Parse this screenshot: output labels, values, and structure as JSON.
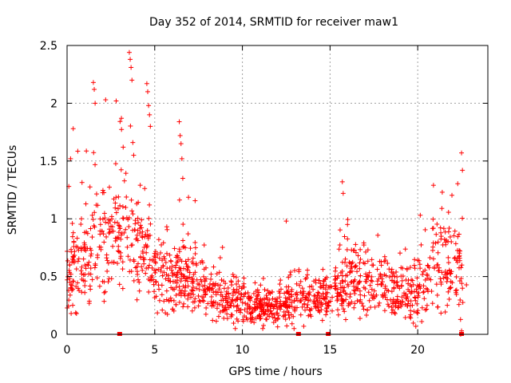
{
  "chart_data": {
    "type": "scatter",
    "title": "Day 352 of 2014, SRMTID for receiver maw1",
    "xlabel": "GPS time / hours",
    "ylabel": "SRMTID / TECUs",
    "xlim": [
      0,
      24
    ],
    "ylim": [
      0,
      2.5
    ],
    "grid": true,
    "marker": "plus",
    "color": "#ff0000",
    "x_ticks": [
      0,
      5,
      10,
      15,
      20
    ],
    "x_tick_labels": [
      "0",
      "5",
      "10",
      "15",
      "20"
    ],
    "y_ticks": [
      0,
      0.5,
      1,
      1.5,
      2,
      2.5
    ],
    "y_tick_labels": [
      "0",
      "0.5",
      "1",
      "1.5",
      "2",
      "2.5"
    ],
    "series": [
      {
        "name": "SRMTID",
        "density_profile_x": [
          0,
          1,
          2,
          3,
          3.5,
          4,
          4.5,
          5,
          6,
          7,
          8,
          9,
          10,
          11,
          12,
          13,
          14,
          15,
          16,
          17,
          18,
          19,
          20,
          21,
          22,
          22.5
        ],
        "density_profile_y": [
          0.5,
          0.65,
          0.75,
          0.85,
          0.95,
          0.75,
          0.7,
          0.55,
          0.5,
          0.45,
          0.35,
          0.3,
          0.3,
          0.22,
          0.25,
          0.3,
          0.32,
          0.3,
          0.5,
          0.45,
          0.4,
          0.35,
          0.35,
          0.65,
          0.65,
          0.5
        ],
        "notable_points": [
          {
            "x": 0.1,
            "y": 1.28
          },
          {
            "x": 0.2,
            "y": 1.52
          },
          {
            "x": 0.35,
            "y": 1.78
          },
          {
            "x": 1.5,
            "y": 2.18
          },
          {
            "x": 1.55,
            "y": 2.12
          },
          {
            "x": 1.6,
            "y": 2.0
          },
          {
            "x": 2.2,
            "y": 2.03
          },
          {
            "x": 2.8,
            "y": 2.02
          },
          {
            "x": 3.1,
            "y": 1.87
          },
          {
            "x": 3.2,
            "y": 1.62
          },
          {
            "x": 3.55,
            "y": 2.44
          },
          {
            "x": 3.6,
            "y": 2.38
          },
          {
            "x": 3.65,
            "y": 2.31
          },
          {
            "x": 3.7,
            "y": 2.2
          },
          {
            "x": 3.75,
            "y": 1.66
          },
          {
            "x": 3.8,
            "y": 1.55
          },
          {
            "x": 4.55,
            "y": 2.17
          },
          {
            "x": 4.6,
            "y": 2.1
          },
          {
            "x": 4.65,
            "y": 1.98
          },
          {
            "x": 4.7,
            "y": 1.9
          },
          {
            "x": 4.75,
            "y": 1.8
          },
          {
            "x": 6.4,
            "y": 1.84
          },
          {
            "x": 6.45,
            "y": 1.72
          },
          {
            "x": 6.5,
            "y": 1.65
          },
          {
            "x": 6.55,
            "y": 1.52
          },
          {
            "x": 6.6,
            "y": 1.35
          },
          {
            "x": 12.5,
            "y": 0.98
          },
          {
            "x": 15.7,
            "y": 1.32
          },
          {
            "x": 15.75,
            "y": 1.22
          },
          {
            "x": 21.4,
            "y": 1.23
          },
          {
            "x": 22.5,
            "y": 1.57
          },
          {
            "x": 22.55,
            "y": 1.42
          },
          {
            "x": 22.45,
            "y": 0.0
          },
          {
            "x": 22.5,
            "y": 0.03
          }
        ]
      }
    ],
    "baseline_markers_x": [
      3.0,
      13.2,
      14.9,
      22.5
    ]
  }
}
